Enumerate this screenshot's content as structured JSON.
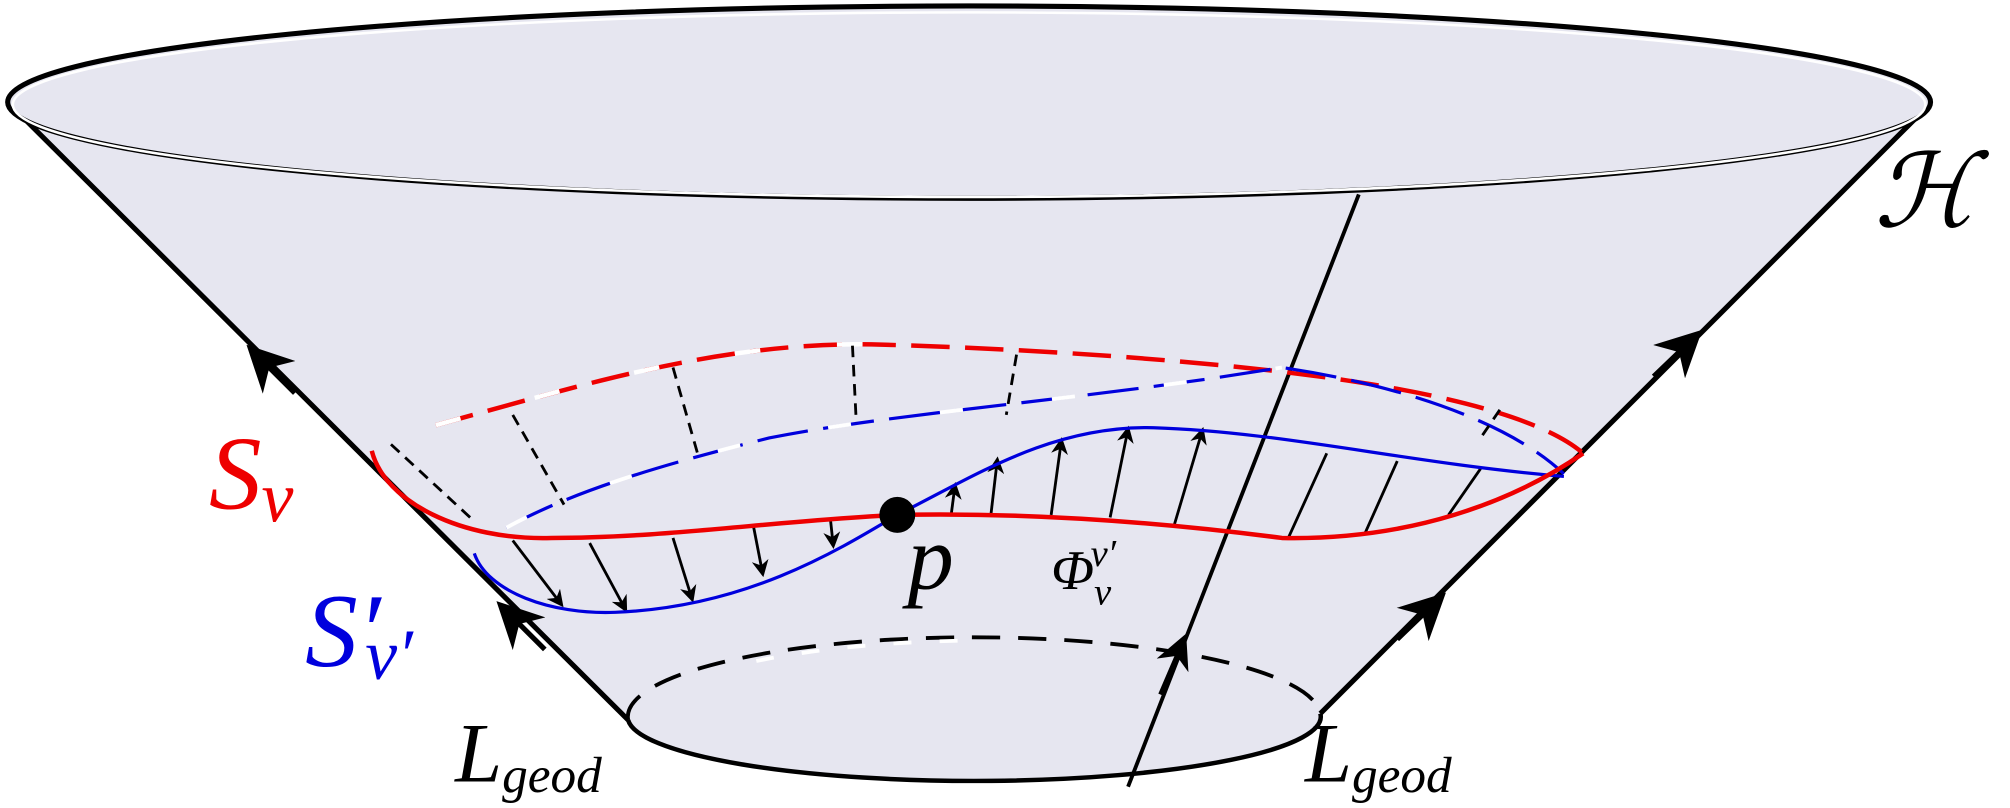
{
  "labels": {
    "horizon": "ℋ",
    "surface_v": {
      "symbol": "S",
      "subscript": "v"
    },
    "surface_v_prime": {
      "symbol": "S′",
      "subscript": "v′"
    },
    "point": "p",
    "flow": {
      "symbol": "Φ",
      "subscript": "v",
      "superscript": "v′"
    },
    "geodesic_left": {
      "symbol": "L",
      "subscript": "geod"
    },
    "geodesic_right": {
      "symbol": "L",
      "subscript": "geod"
    }
  }
}
